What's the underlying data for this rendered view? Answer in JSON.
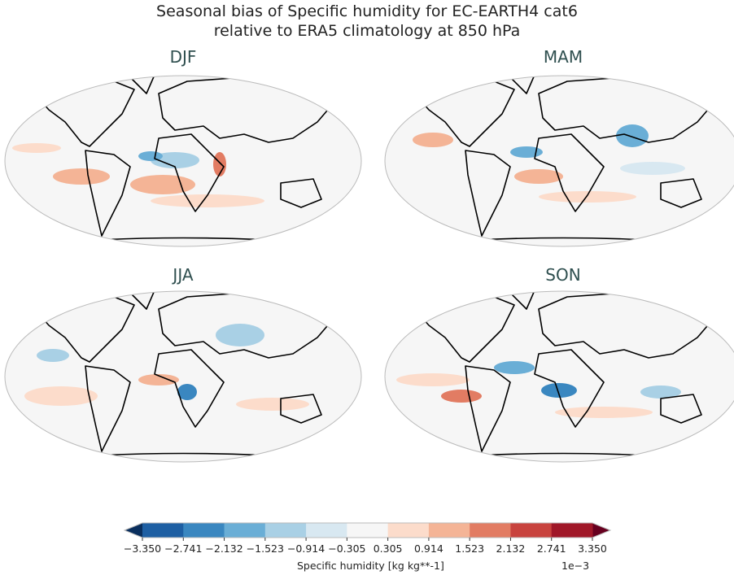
{
  "title_line1": "Seasonal bias of Specific humidity for EC-EARTH4 cat6",
  "title_line2": "relative to ERA5 climatology at 850 hPa",
  "panels": [
    {
      "label": "DJF"
    },
    {
      "label": "MAM"
    },
    {
      "label": "JJA"
    },
    {
      "label": "SON"
    }
  ],
  "colorbar": {
    "label": "Specific humidity [kg kg**-1]",
    "scale": "1e−3",
    "ticks": [
      "−3.350",
      "−2.741",
      "−2.132",
      "−1.523",
      "−0.914",
      "−0.305",
      "0.305",
      "0.914",
      "1.523",
      "2.132",
      "2.741",
      "3.350"
    ],
    "colors": [
      "#1e5fa3",
      "#3a87c0",
      "#6aaed6",
      "#a9d0e5",
      "#d8e8f1",
      "#f6f6f6",
      "#fcdccb",
      "#f4b496",
      "#e27c63",
      "#c8433e",
      "#a01728"
    ],
    "under_color": "#0a2f5e",
    "over_color": "#67001f",
    "extend": "both"
  }
}
